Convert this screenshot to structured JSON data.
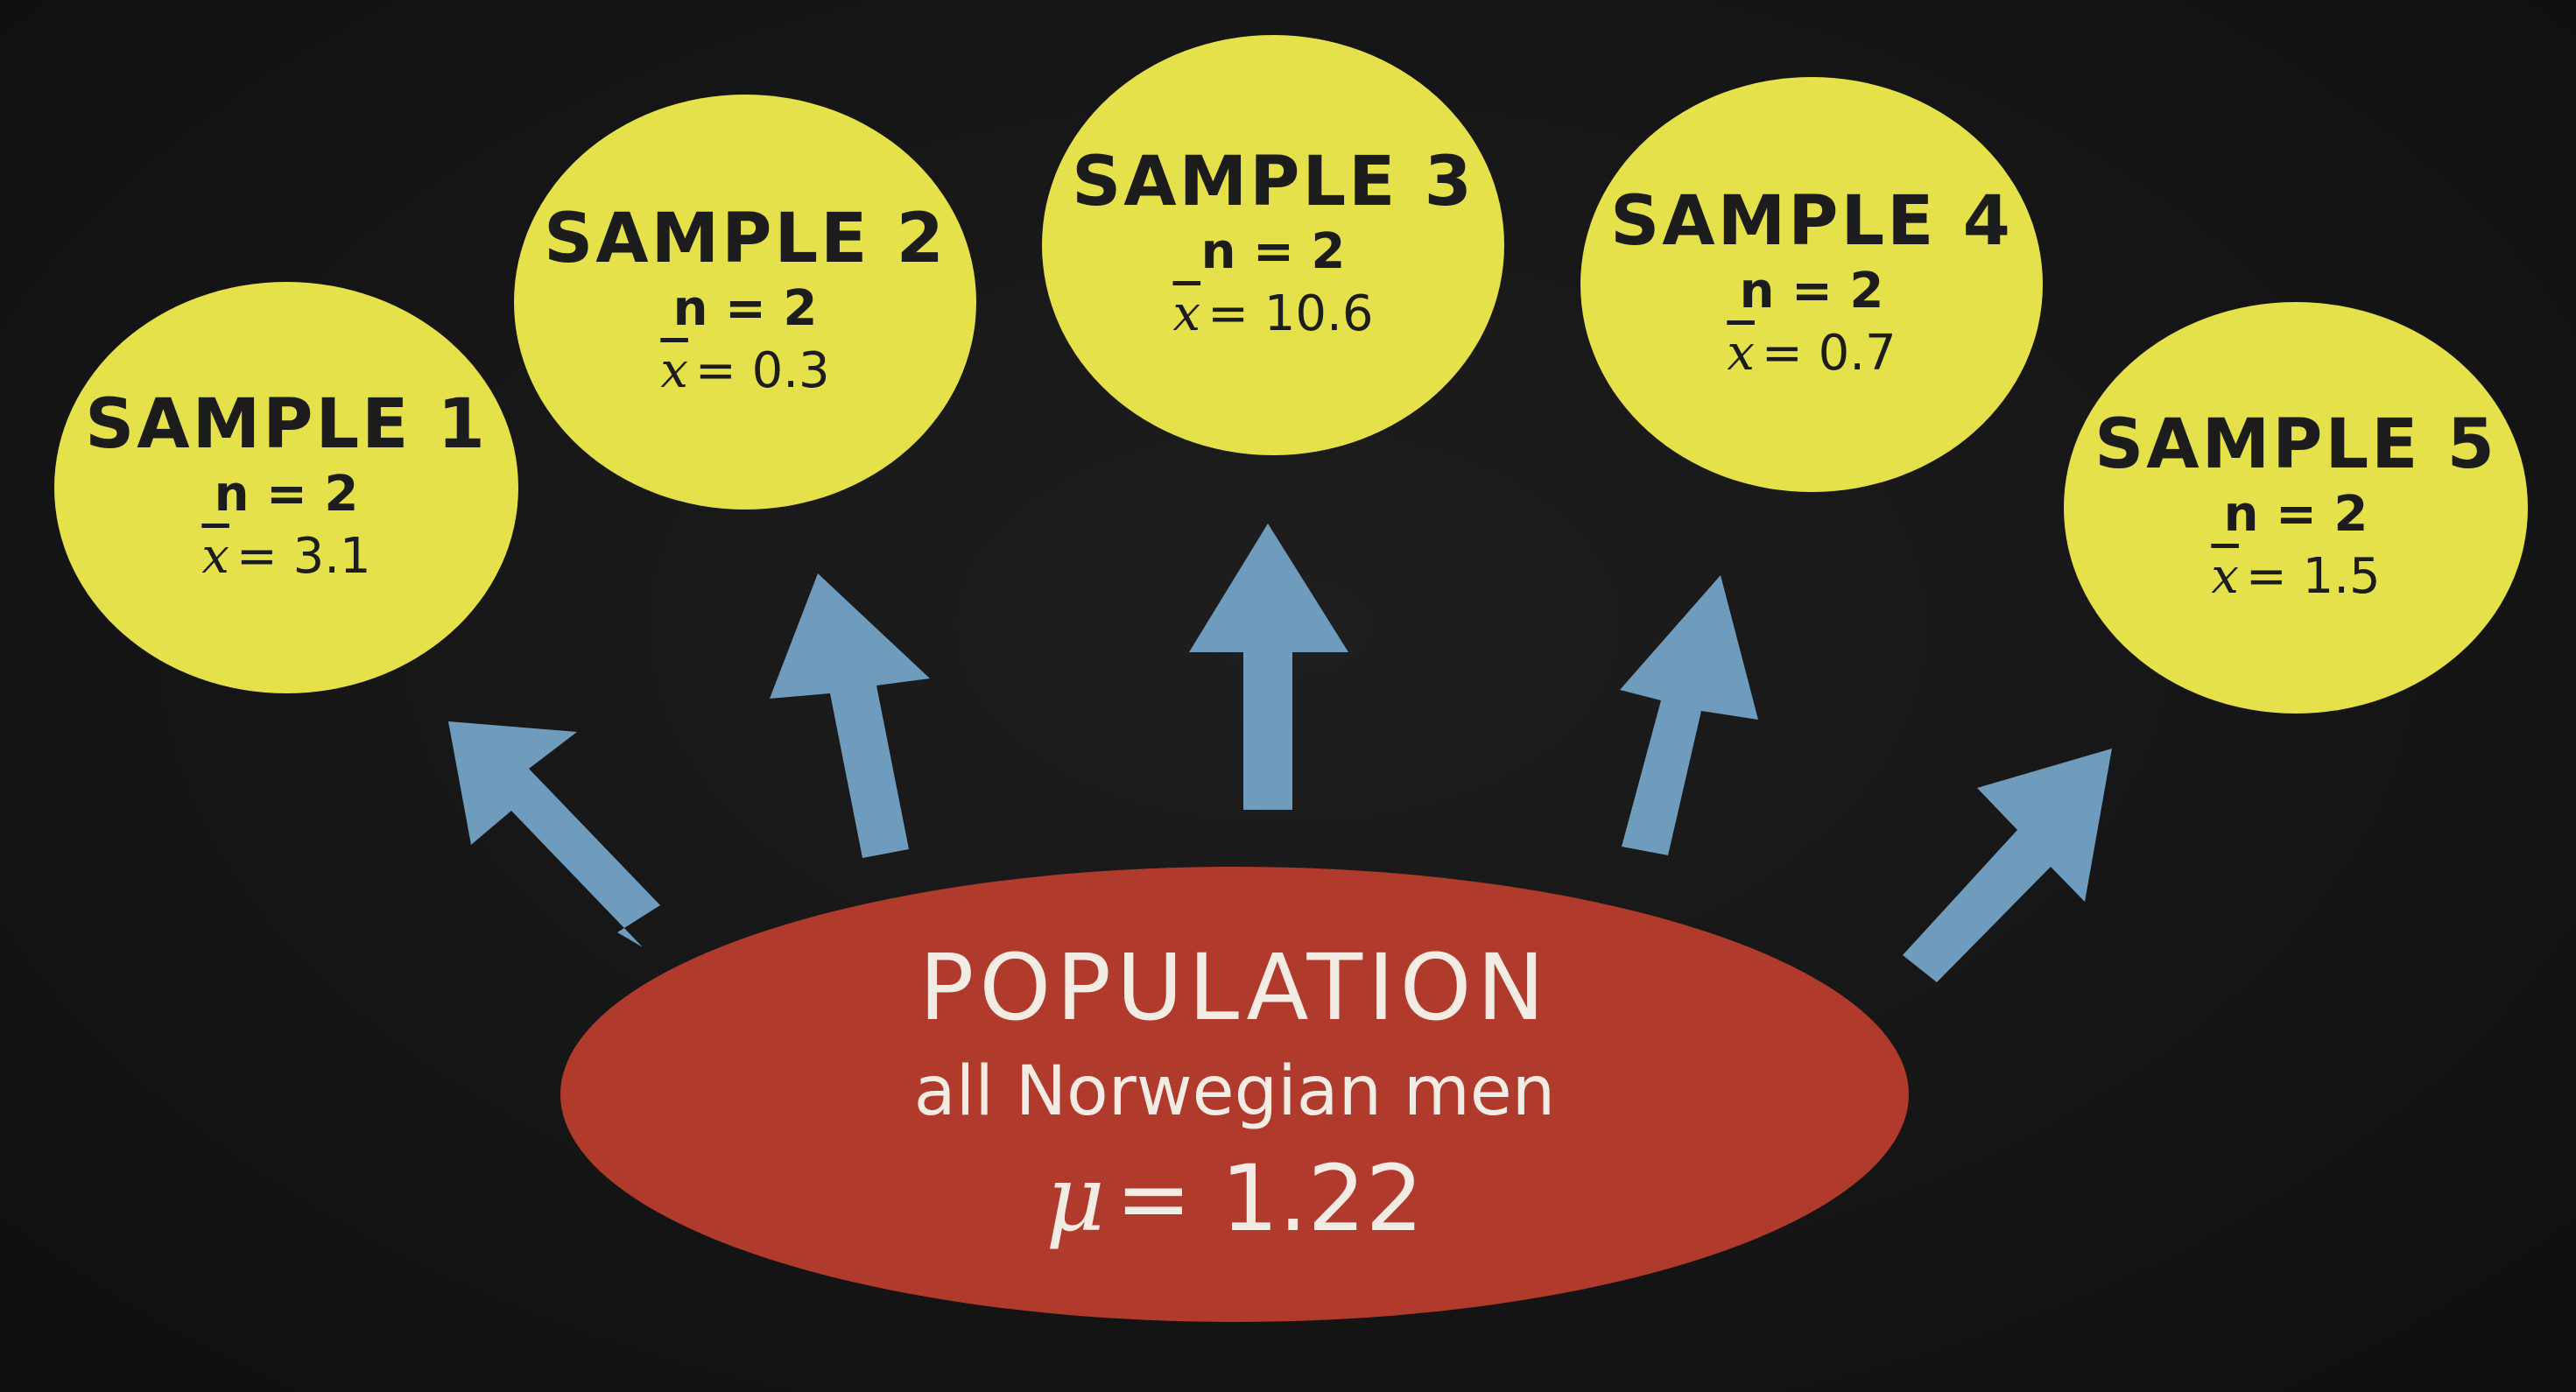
{
  "samples": [
    {
      "title": "SAMPLE 1",
      "n_label": "n = 2",
      "xbar_symbol": "x",
      "xbar_value": "= 3.1"
    },
    {
      "title": "SAMPLE 2",
      "n_label": "n = 2",
      "xbar_symbol": "x",
      "xbar_value": "= 0.3"
    },
    {
      "title": "SAMPLE 3",
      "n_label": "n = 2",
      "xbar_symbol": "x",
      "xbar_value": "= 10.6"
    },
    {
      "title": "SAMPLE 4",
      "n_label": "n = 2",
      "xbar_symbol": "x",
      "xbar_value": "= 0.7"
    },
    {
      "title": "SAMPLE 5",
      "n_label": "n = 2",
      "xbar_symbol": "x",
      "xbar_value": "= 1.5"
    }
  ],
  "population": {
    "title": "POPULATION",
    "subtitle": "all Norwegian men",
    "mu_symbol": "μ",
    "mu_value": "= 1.22"
  },
  "colors": {
    "background": "#141414",
    "sample_fill": "#e5e14a",
    "population_fill": "#b03a2b",
    "arrow": "#6f9bbd",
    "sample_text": "#1c1c1c",
    "population_text": "#f3ece4"
  }
}
